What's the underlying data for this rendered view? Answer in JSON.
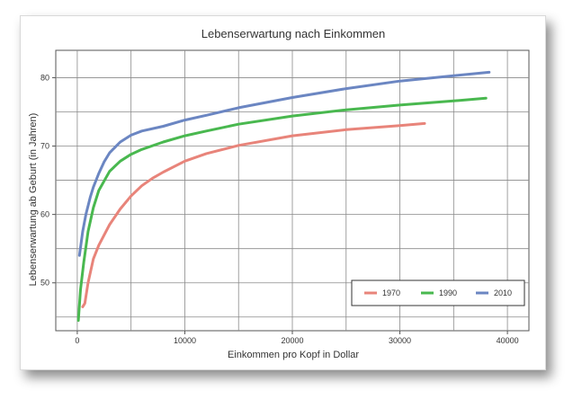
{
  "chart_data": {
    "type": "line",
    "title": "Lebenserwartung nach Einkommen",
    "xlabel": "Einkommen pro Kopf in Dollar",
    "ylabel": "Lebenserwartung ab Geburt (in Jahren)",
    "xlim": [
      -2000,
      42000
    ],
    "ylim": [
      43,
      84
    ],
    "xticks": [
      0,
      10000,
      20000,
      30000,
      40000
    ],
    "yticks": [
      50,
      60,
      70,
      80
    ],
    "grid": true,
    "legend_position": "bottom-right",
    "series": [
      {
        "name": "1970",
        "color": "#e8847a",
        "points": [
          [
            500,
            46.5
          ],
          [
            700,
            47
          ],
          [
            1000,
            50
          ],
          [
            1500,
            53.5
          ],
          [
            2000,
            55.5
          ],
          [
            3000,
            58.5
          ],
          [
            4000,
            60.8
          ],
          [
            5000,
            62.7
          ],
          [
            6000,
            64.2
          ],
          [
            7000,
            65.3
          ],
          [
            8000,
            66.2
          ],
          [
            10000,
            67.8
          ],
          [
            12000,
            68.9
          ],
          [
            15000,
            70.1
          ],
          [
            20000,
            71.5
          ],
          [
            25000,
            72.4
          ],
          [
            30000,
            73
          ],
          [
            32300,
            73.3
          ]
        ]
      },
      {
        "name": "1990",
        "color": "#49b84f",
        "points": [
          [
            100,
            44.5
          ],
          [
            300,
            49
          ],
          [
            600,
            53
          ],
          [
            1000,
            57.5
          ],
          [
            1500,
            61
          ],
          [
            2000,
            63.5
          ],
          [
            3000,
            66.3
          ],
          [
            4000,
            67.8
          ],
          [
            5000,
            68.8
          ],
          [
            6000,
            69.5
          ],
          [
            8000,
            70.6
          ],
          [
            10000,
            71.5
          ],
          [
            12000,
            72.2
          ],
          [
            15000,
            73.2
          ],
          [
            20000,
            74.4
          ],
          [
            25000,
            75.3
          ],
          [
            30000,
            76
          ],
          [
            35000,
            76.6
          ],
          [
            38000,
            77
          ]
        ]
      },
      {
        "name": "2010",
        "color": "#6b86c2",
        "points": [
          [
            200,
            54
          ],
          [
            500,
            57.5
          ],
          [
            800,
            60
          ],
          [
            1200,
            62.5
          ],
          [
            1500,
            64
          ],
          [
            2000,
            66
          ],
          [
            2500,
            67.7
          ],
          [
            3000,
            69
          ],
          [
            4000,
            70.6
          ],
          [
            5000,
            71.6
          ],
          [
            6000,
            72.2
          ],
          [
            8000,
            72.9
          ],
          [
            10000,
            73.8
          ],
          [
            12000,
            74.5
          ],
          [
            15000,
            75.6
          ],
          [
            20000,
            77.1
          ],
          [
            25000,
            78.4
          ],
          [
            30000,
            79.5
          ],
          [
            35000,
            80.3
          ],
          [
            38300,
            80.8
          ]
        ]
      }
    ]
  }
}
